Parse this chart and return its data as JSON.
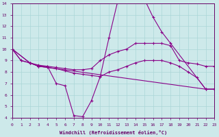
{
  "xlabel": "Windchill (Refroidissement éolien,°C)",
  "xlim": [
    0,
    23
  ],
  "ylim": [
    4,
    14
  ],
  "xticks": [
    0,
    1,
    2,
    3,
    4,
    5,
    6,
    7,
    8,
    9,
    10,
    11,
    12,
    13,
    14,
    15,
    16,
    17,
    18,
    19,
    20,
    21,
    22,
    23
  ],
  "yticks": [
    4,
    5,
    6,
    7,
    8,
    9,
    10,
    11,
    12,
    13,
    14
  ],
  "bg_color": "#cde9ea",
  "line_color": "#880088",
  "grid_color": "#aad5d6",
  "line1_x": [
    0,
    1,
    2,
    3,
    4,
    5,
    6,
    7,
    8,
    9,
    10,
    11,
    12,
    13,
    14,
    15,
    16,
    17,
    18,
    22,
    23
  ],
  "line1_y": [
    10,
    9,
    8.8,
    8.5,
    8.5,
    7.0,
    6.8,
    4.2,
    4.1,
    5.5,
    7.6,
    11.0,
    14.2,
    14.3,
    14.4,
    14.4,
    12.8,
    11.5,
    10.5,
    6.5,
    6.5
  ],
  "line2_x": [
    0,
    1,
    2,
    3,
    4,
    5,
    6,
    7,
    8,
    9,
    10,
    11,
    12,
    13,
    14,
    15,
    16,
    17,
    18,
    19,
    20,
    21,
    22,
    23
  ],
  "line2_y": [
    10,
    9,
    8.8,
    8.6,
    8.5,
    8.4,
    8.3,
    8.2,
    8.2,
    8.3,
    9.0,
    9.5,
    9.8,
    10.0,
    10.5,
    10.5,
    10.5,
    10.5,
    10.3,
    9.0,
    8.8,
    8.7,
    8.5,
    8.5
  ],
  "line3_x": [
    0,
    2,
    3,
    4,
    5,
    6,
    7,
    8,
    9,
    10,
    11,
    12,
    13,
    14,
    15,
    16,
    17,
    18,
    19,
    20,
    21,
    22,
    23
  ],
  "line3_y": [
    10,
    8.8,
    8.5,
    8.4,
    8.3,
    8.1,
    7.9,
    7.8,
    7.7,
    7.6,
    8.0,
    8.2,
    8.5,
    8.8,
    9.0,
    9.0,
    9.0,
    8.8,
    8.5,
    8.0,
    7.5,
    6.5,
    6.5
  ],
  "line4_x": [
    0,
    2,
    3,
    22,
    23
  ],
  "line4_y": [
    10,
    8.8,
    8.5,
    6.5,
    6.5
  ]
}
